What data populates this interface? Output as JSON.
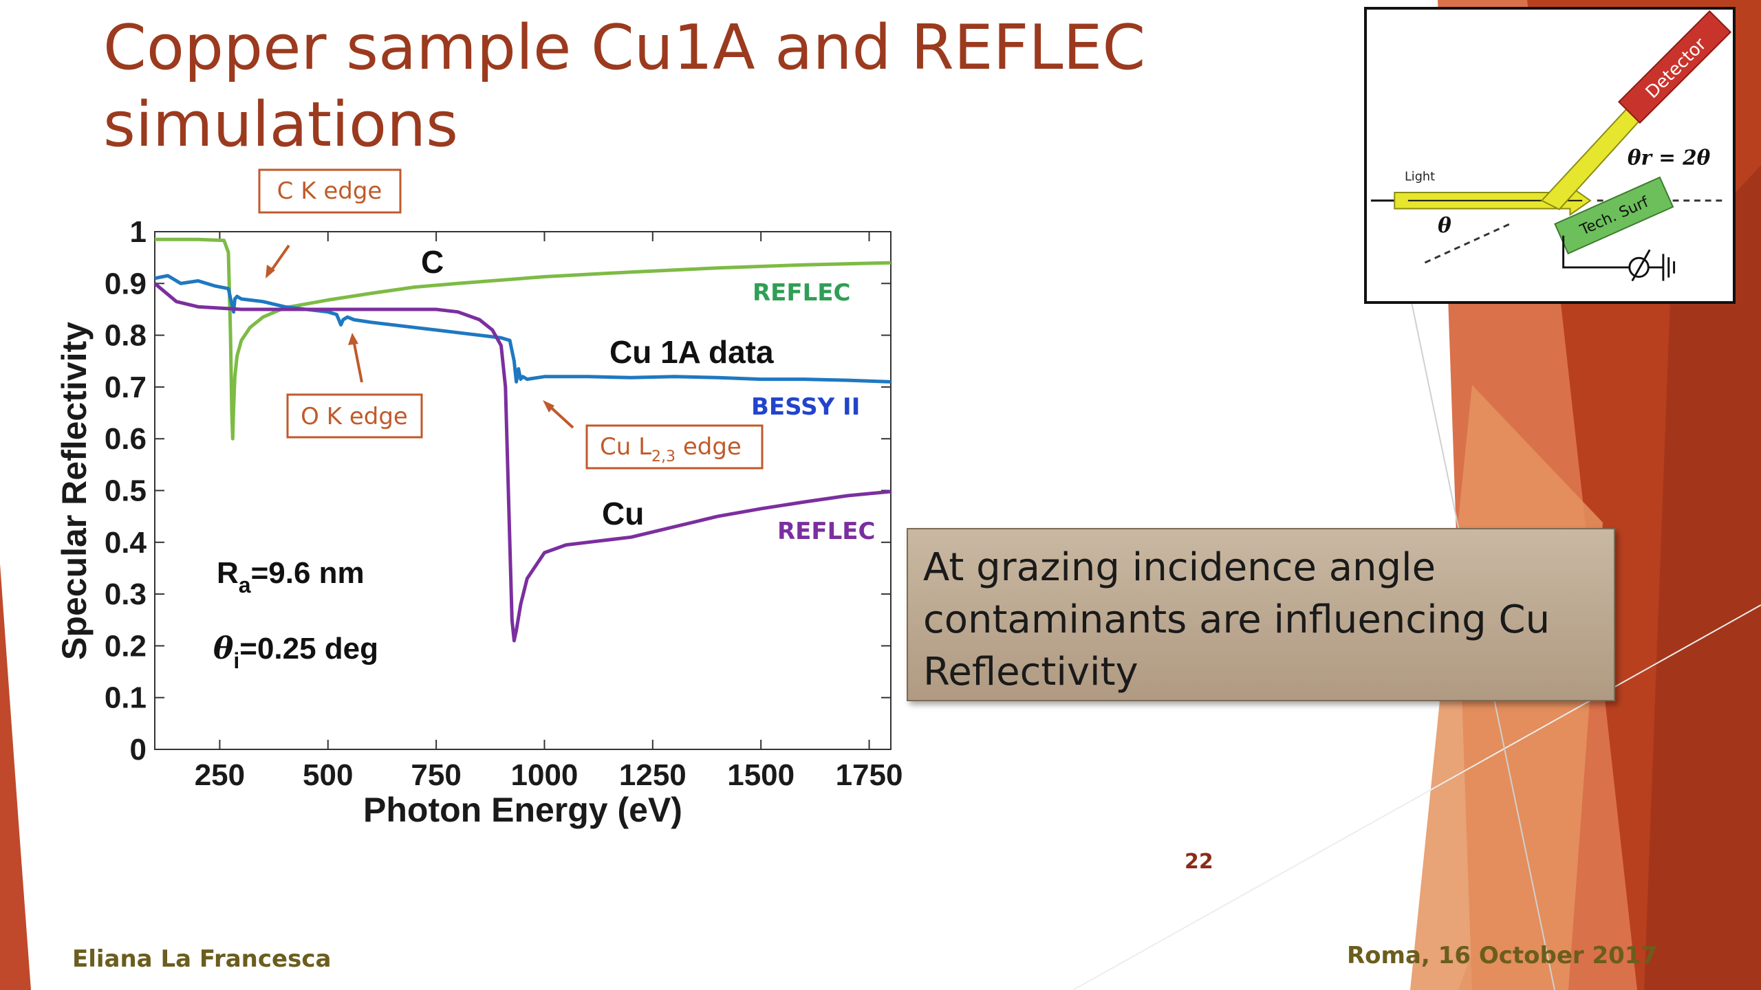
{
  "title": {
    "line1": "Copper sample Cu1A and REFLEC",
    "line2": "simulations"
  },
  "callout": {
    "line1": "At grazing incidence angle",
    "line2": "contaminants are influencing Cu",
    "line3": "Reflectivity"
  },
  "footer": {
    "page_number": "22",
    "author": "Eliana La Francesca",
    "date": "Roma, 16 October 2017"
  },
  "inset": {
    "light_label": "Light",
    "theta_label": "θ",
    "theta_r_label": "θr = 2θ",
    "detector_label": "Detector",
    "surface_label": "Tech. Surf"
  },
  "colors": {
    "title": "#9b3a1e",
    "reflec_c": "#7dbb45",
    "bessy_data": "#1f78c1",
    "reflec_cu": "#7b2f9e",
    "annotation": "#c05a2a",
    "callout_bg": "#bfac95"
  },
  "chart_data": {
    "type": "line",
    "xlabel": "Photon Energy (eV)",
    "ylabel": "Specular Reflectivity",
    "xlim": [
      100,
      1800
    ],
    "ylim": [
      0,
      1
    ],
    "xticks": [
      250,
      500,
      750,
      1000,
      1250,
      1500,
      1750
    ],
    "yticks": [
      0,
      0.1,
      0.2,
      0.3,
      0.4,
      0.5,
      0.6,
      0.7,
      0.8,
      0.9,
      1
    ],
    "grid": false,
    "series": [
      {
        "name": "REFLEC",
        "curve_label": "C",
        "color": "#7dbb45",
        "x": [
          100,
          200,
          260,
          270,
          275,
          278,
          280,
          282,
          285,
          290,
          300,
          320,
          350,
          400,
          500,
          600,
          700,
          800,
          1000,
          1200,
          1400,
          1600,
          1800
        ],
        "y": [
          0.985,
          0.985,
          0.983,
          0.96,
          0.8,
          0.65,
          0.6,
          0.66,
          0.72,
          0.76,
          0.79,
          0.815,
          0.835,
          0.853,
          0.868,
          0.881,
          0.893,
          0.9,
          0.913,
          0.922,
          0.93,
          0.936,
          0.94
        ]
      },
      {
        "name": "BESSY II",
        "curve_label": "Cu 1A data",
        "color": "#1f78c1",
        "x": [
          100,
          130,
          160,
          200,
          240,
          270,
          278,
          282,
          285,
          290,
          300,
          350,
          400,
          450,
          500,
          520,
          530,
          535,
          545,
          560,
          600,
          700,
          800,
          900,
          920,
          930,
          935,
          940,
          945,
          950,
          960,
          1000,
          1100,
          1200,
          1300,
          1400,
          1500,
          1600,
          1700,
          1800
        ],
        "y": [
          0.91,
          0.915,
          0.9,
          0.905,
          0.895,
          0.89,
          0.86,
          0.845,
          0.87,
          0.875,
          0.87,
          0.865,
          0.855,
          0.85,
          0.845,
          0.84,
          0.82,
          0.83,
          0.835,
          0.83,
          0.825,
          0.815,
          0.805,
          0.795,
          0.79,
          0.75,
          0.71,
          0.735,
          0.715,
          0.72,
          0.715,
          0.72,
          0.72,
          0.718,
          0.72,
          0.718,
          0.715,
          0.715,
          0.713,
          0.71
        ]
      },
      {
        "name": "REFLEC",
        "curve_label": "Cu",
        "color": "#7b2f9e",
        "x": [
          100,
          150,
          200,
          300,
          400,
          500,
          600,
          700,
          750,
          800,
          850,
          880,
          900,
          910,
          920,
          925,
          930,
          935,
          945,
          960,
          1000,
          1050,
          1100,
          1200,
          1300,
          1400,
          1500,
          1600,
          1700,
          1800
        ],
        "y": [
          0.9,
          0.865,
          0.855,
          0.85,
          0.85,
          0.85,
          0.85,
          0.85,
          0.85,
          0.845,
          0.83,
          0.81,
          0.78,
          0.7,
          0.4,
          0.25,
          0.21,
          0.23,
          0.28,
          0.33,
          0.38,
          0.395,
          0.4,
          0.41,
          0.43,
          0.45,
          0.465,
          0.478,
          0.49,
          0.498
        ]
      }
    ],
    "annotations": [
      {
        "text": "C K edge"
      },
      {
        "text": "O K edge"
      },
      {
        "text": "Cu L",
        "subscript": "2,3",
        "suffix": " edge"
      },
      {
        "text": "R",
        "subscript": "a",
        "suffix": "=9.6 nm"
      },
      {
        "text": "θ",
        "subscript": "i",
        "suffix": "=0.25 deg"
      }
    ]
  }
}
